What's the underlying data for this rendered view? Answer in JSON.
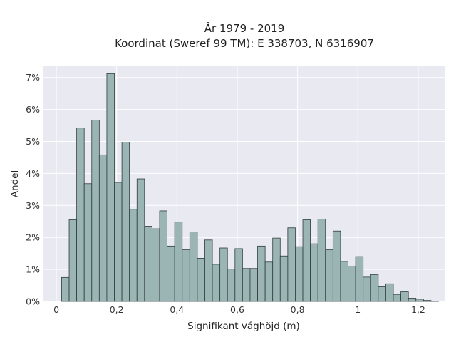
{
  "chart_data": {
    "type": "bar",
    "title_line1": "År 1979 - 2019",
    "title_line2": "Koordinat (Sweref 99 TM): E 338703, N 6316907",
    "xlabel": "Signifikant våghöjd (m)",
    "ylabel": "Andel",
    "xlim": [
      -0.045,
      1.29
    ],
    "ylim": [
      0,
      7.35
    ],
    "x_ticks": [
      0,
      0.2,
      0.4,
      0.6,
      0.8,
      1.0,
      1.2
    ],
    "x_tick_labels": [
      "0",
      "0,2",
      "0,4",
      "0,6",
      "0,8",
      "1",
      "1,2"
    ],
    "y_ticks": [
      0,
      1,
      2,
      3,
      4,
      5,
      6,
      7
    ],
    "y_tick_labels": [
      "0%",
      "1%",
      "2%",
      "3%",
      "4%",
      "5%",
      "6%",
      "7%"
    ],
    "bin_start": 0.0175,
    "bin_width": 0.025,
    "values": [
      0.75,
      2.55,
      5.42,
      3.68,
      5.67,
      4.58,
      7.12,
      3.72,
      4.98,
      2.88,
      3.83,
      2.35,
      2.27,
      2.83,
      1.73,
      2.48,
      1.62,
      2.17,
      1.35,
      1.92,
      1.16,
      1.67,
      1.01,
      1.65,
      1.03,
      1.03,
      1.73,
      1.23,
      1.98,
      1.42,
      2.3,
      1.71,
      2.55,
      1.8,
      2.57,
      1.62,
      2.2,
      1.25,
      1.1,
      1.4,
      0.76,
      0.84,
      0.46,
      0.55,
      0.22,
      0.3,
      0.1,
      0.07,
      0.03,
      0.01
    ],
    "grid": true,
    "colors": {
      "bar_fill": "#9bb4b4",
      "bar_edge": "#2f3c3c",
      "plot_bg": "#e9e9f1",
      "grid": "#ffffff"
    }
  }
}
